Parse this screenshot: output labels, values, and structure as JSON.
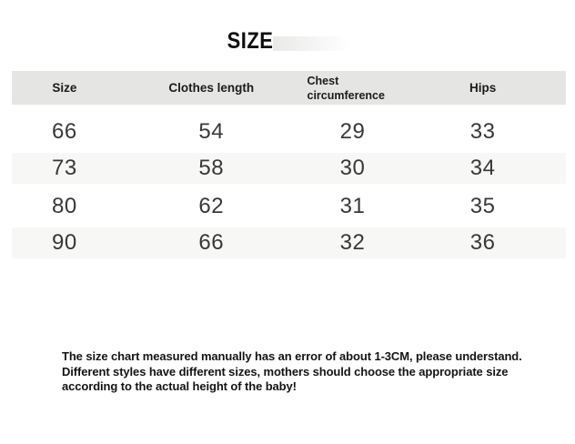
{
  "title": "SIZE",
  "table": {
    "headers": [
      "Size",
      "Clothes length",
      "Chest circumference",
      "Hips"
    ],
    "rows": [
      [
        "66",
        "54",
        "29",
        "33"
      ],
      [
        "73",
        "58",
        "30",
        "34"
      ],
      [
        "80",
        "62",
        "31",
        "35"
      ],
      [
        "90",
        "66",
        "32",
        "36"
      ]
    ]
  },
  "footer": {
    "text": "The size chart measured manually has an error of about 1-3CM, please understand.\nDifferent styles have different sizes, mothers should choose the appropriate size\naccording to the actual height of the baby!"
  },
  "colors": {
    "header_bg": "#e5e5e3",
    "alt_row_bg": "#f7f7f5",
    "text_dark": "#1b1b1b",
    "number_color": "#383838",
    "watermark": "#e9e9e8"
  }
}
